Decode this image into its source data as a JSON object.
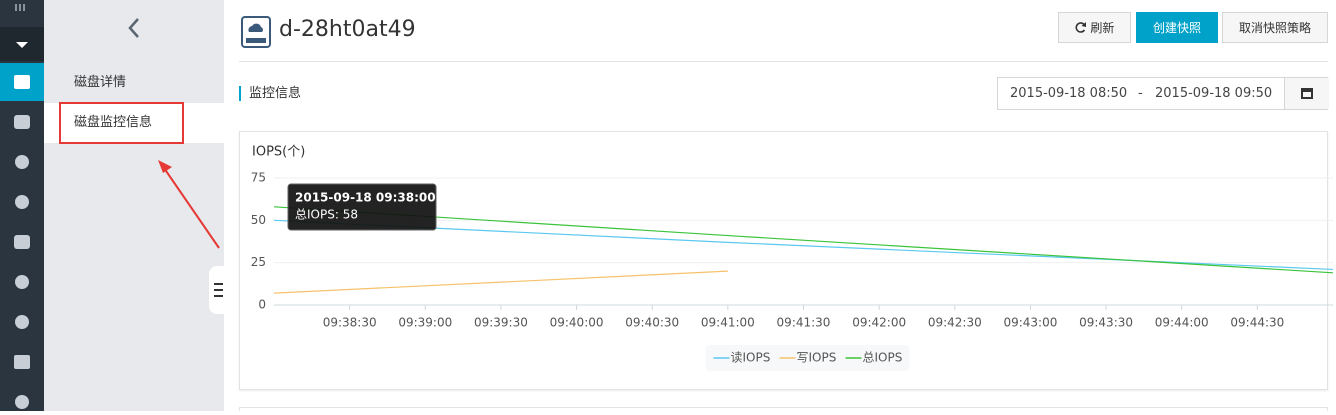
{
  "sidebar": {
    "items": [
      "磁盘详情",
      "磁盘监控信息"
    ]
  },
  "header": {
    "title": "d-28ht0at49",
    "buttons": [
      "刷新",
      "创建快照",
      "取消快照策略"
    ]
  },
  "section": {
    "title": "监控信息",
    "date_start": "2015-09-18 08:50",
    "date_separator": "-",
    "date_end": "2015-09-18 09:50"
  },
  "chart_data": {
    "type": "line",
    "title": "IOPS(个)",
    "x": [
      "09:38:00",
      "09:41:00",
      "09:45:00"
    ],
    "xlim": [
      "09:38:00",
      "09:45:00"
    ],
    "xticks": [
      "09:38:30",
      "09:39:00",
      "09:39:30",
      "09:40:00",
      "09:40:30",
      "09:41:00",
      "09:41:30",
      "09:42:00",
      "09:42:30",
      "09:43:00",
      "09:43:30",
      "09:44:00",
      "09:44:30"
    ],
    "ylim": [
      0,
      75
    ],
    "yticks": [
      0,
      25,
      50,
      75
    ],
    "grid": true,
    "series": [
      {
        "name": "读IOPS",
        "color": "#5bc8ef",
        "values": [
          50,
          37,
          21
        ]
      },
      {
        "name": "写IOPS",
        "color": "#f5c26b",
        "values": [
          7,
          20,
          null
        ]
      },
      {
        "name": "总IOPS",
        "color": "#3ac43a",
        "values": [
          58,
          41,
          19
        ]
      }
    ],
    "tooltip": {
      "title": "2015-09-18 09:38:00",
      "text": "总IOPS: 58"
    }
  }
}
